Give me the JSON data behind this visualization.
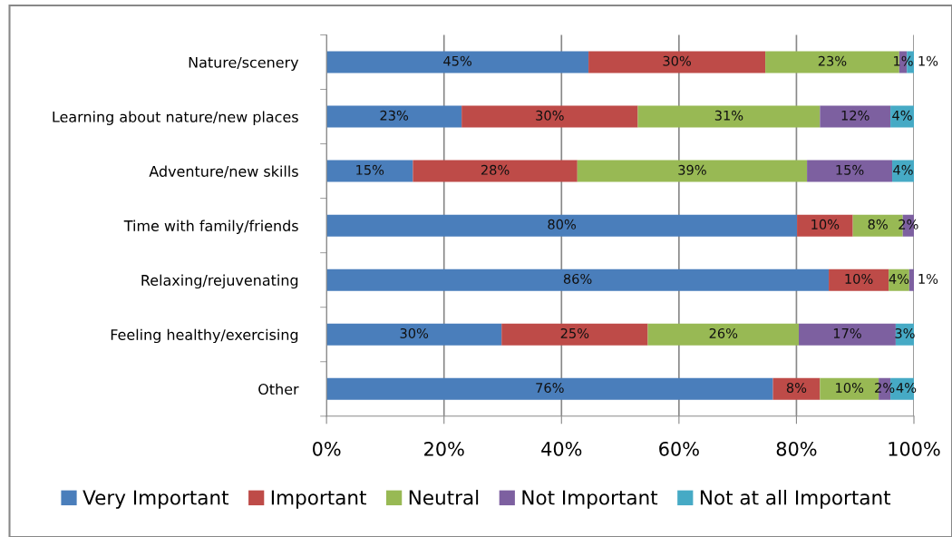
{
  "chart_data": {
    "type": "bar",
    "orientation": "horizontal",
    "stacked": true,
    "categories": [
      "Nature/scenery",
      "Learning about nature/new places",
      "Adventure/new skills",
      "Time with family/friends",
      "Relaxing/rejuvenating",
      "Feeling healthy/exercising",
      "Other"
    ],
    "series": [
      {
        "name": "Very Important",
        "color": "#4a7ebb",
        "values": [
          44.6,
          23,
          14.7,
          80.1,
          85.5,
          29.8,
          76
        ],
        "value_labels": [
          "45%",
          "23%",
          "15%",
          "80%",
          "86%",
          "30%",
          "76%"
        ]
      },
      {
        "name": "Important",
        "color": "#be4b48",
        "values": [
          30.1,
          30,
          28.0,
          9.5,
          10.2,
          24.9,
          8
        ],
        "value_labels": [
          "30%",
          "30%",
          "28%",
          "10%",
          "10%",
          "25%",
          "8%"
        ]
      },
      {
        "name": "Neutral",
        "color": "#98b954",
        "values": [
          22.8,
          31,
          39.1,
          8.5,
          3.5,
          25.7,
          10
        ],
        "value_labels": [
          "23%",
          "31%",
          "39%",
          "8%",
          "4%",
          "26%",
          "10%"
        ]
      },
      {
        "name": "Not Important",
        "color": "#7d60a0",
        "values": [
          1.3,
          12,
          14.5,
          1.9,
          0.8,
          16.5,
          2
        ],
        "value_labels": [
          "1%",
          "12%",
          "15%",
          "2%",
          "1%",
          "17%",
          "2%"
        ]
      },
      {
        "name": "Not at all Important",
        "color": "#46aac5",
        "values": [
          1.2,
          4,
          3.7,
          null,
          null,
          3.1,
          4
        ],
        "value_labels": [
          "1%",
          "4%",
          "4%",
          null,
          null,
          "3%",
          "4%"
        ]
      }
    ],
    "xlim": [
      0,
      100
    ],
    "xticks": [
      {
        "value": 0,
        "label": "0%"
      },
      {
        "value": 20,
        "label": "20%"
      },
      {
        "value": 40,
        "label": "40%"
      },
      {
        "value": 60,
        "label": "60%"
      },
      {
        "value": 80,
        "label": "80%"
      },
      {
        "value": 100,
        "label": "100%"
      }
    ],
    "grid": "x",
    "legend": "bottom"
  }
}
